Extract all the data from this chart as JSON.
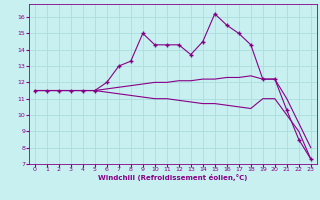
{
  "xlabel": "Windchill (Refroidissement éolien,°C)",
  "background_color": "#c8f0f0",
  "grid_color": "#aadddd",
  "line_color": "#880088",
  "xlim": [
    -0.5,
    23.5
  ],
  "ylim": [
    7,
    16.8
  ],
  "yticks": [
    7,
    8,
    9,
    10,
    11,
    12,
    13,
    14,
    15,
    16
  ],
  "xticks": [
    0,
    1,
    2,
    3,
    4,
    5,
    6,
    7,
    8,
    9,
    10,
    11,
    12,
    13,
    14,
    15,
    16,
    17,
    18,
    19,
    20,
    21,
    22,
    23
  ],
  "series1_x": [
    0,
    1,
    2,
    3,
    4,
    5,
    6,
    7,
    8,
    9,
    10,
    11,
    12,
    13,
    14,
    15,
    16,
    17,
    18,
    19,
    20,
    21,
    22,
    23
  ],
  "series1_y": [
    11.5,
    11.5,
    11.5,
    11.5,
    11.5,
    11.5,
    12.0,
    13.0,
    13.3,
    15.0,
    14.3,
    14.3,
    14.3,
    13.7,
    14.5,
    16.2,
    15.5,
    15.0,
    14.3,
    12.2,
    12.2,
    10.3,
    8.5,
    7.3
  ],
  "series2_x": [
    0,
    1,
    2,
    3,
    4,
    5,
    6,
    7,
    8,
    9,
    10,
    11,
    12,
    13,
    14,
    15,
    16,
    17,
    18,
    19,
    20,
    21,
    22,
    23
  ],
  "series2_y": [
    11.5,
    11.5,
    11.5,
    11.5,
    11.5,
    11.5,
    11.6,
    11.7,
    11.8,
    11.9,
    12.0,
    12.0,
    12.1,
    12.1,
    12.2,
    12.2,
    12.3,
    12.3,
    12.4,
    12.2,
    12.2,
    11.0,
    9.5,
    8.0
  ],
  "series3_x": [
    0,
    1,
    2,
    3,
    4,
    5,
    6,
    7,
    8,
    9,
    10,
    11,
    12,
    13,
    14,
    15,
    16,
    17,
    18,
    19,
    20,
    21,
    22,
    23
  ],
  "series3_y": [
    11.5,
    11.5,
    11.5,
    11.5,
    11.5,
    11.5,
    11.4,
    11.3,
    11.2,
    11.1,
    11.0,
    11.0,
    10.9,
    10.8,
    10.7,
    10.7,
    10.6,
    10.5,
    10.4,
    11.0,
    11.0,
    10.0,
    9.0,
    7.3
  ],
  "tick_fontsize": 4.5,
  "xlabel_fontsize": 5.0,
  "marker": "+",
  "markersize": 3.0,
  "linewidth": 0.8
}
